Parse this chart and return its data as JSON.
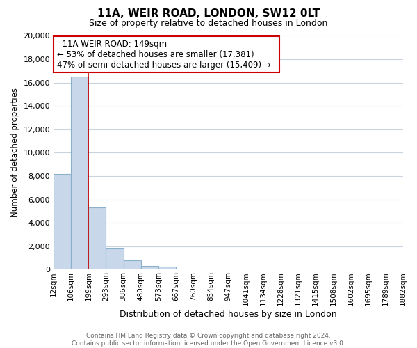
{
  "title": "11A, WEIR ROAD, LONDON, SW12 0LT",
  "subtitle": "Size of property relative to detached houses in London",
  "xlabel": "Distribution of detached houses by size in London",
  "ylabel": "Number of detached properties",
  "bar_values": [
    8200,
    16500,
    5300,
    1800,
    800,
    300,
    270,
    0,
    0,
    0,
    0,
    0,
    0,
    0,
    0,
    0,
    0,
    0,
    0,
    0
  ],
  "bar_labels": [
    "12sqm",
    "106sqm",
    "199sqm",
    "293sqm",
    "386sqm",
    "480sqm",
    "573sqm",
    "667sqm",
    "760sqm",
    "854sqm",
    "947sqm",
    "1041sqm",
    "1134sqm",
    "1228sqm",
    "1321sqm",
    "1415sqm",
    "1508sqm",
    "1602sqm",
    "1695sqm",
    "1789sqm",
    "1882sqm"
  ],
  "bar_color": "#c8d8ea",
  "bar_edge_color": "#8ab0cc",
  "highlight_color": "#cc0000",
  "ylim": [
    0,
    20000
  ],
  "yticks": [
    0,
    2000,
    4000,
    6000,
    8000,
    10000,
    12000,
    14000,
    16000,
    18000,
    20000
  ],
  "annotation_title": "11A WEIR ROAD: 149sqm",
  "annotation_line1": "← 53% of detached houses are smaller (17,381)",
  "annotation_line2": "47% of semi-detached houses are larger (15,409) →",
  "annotation_box_color": "#ffffff",
  "annotation_box_edge": "#cc0000",
  "footer_line1": "Contains HM Land Registry data © Crown copyright and database right 2024.",
  "footer_line2": "Contains public sector information licensed under the Open Government Licence v3.0.",
  "bg_color": "#ffffff",
  "grid_color": "#c8d4e0"
}
